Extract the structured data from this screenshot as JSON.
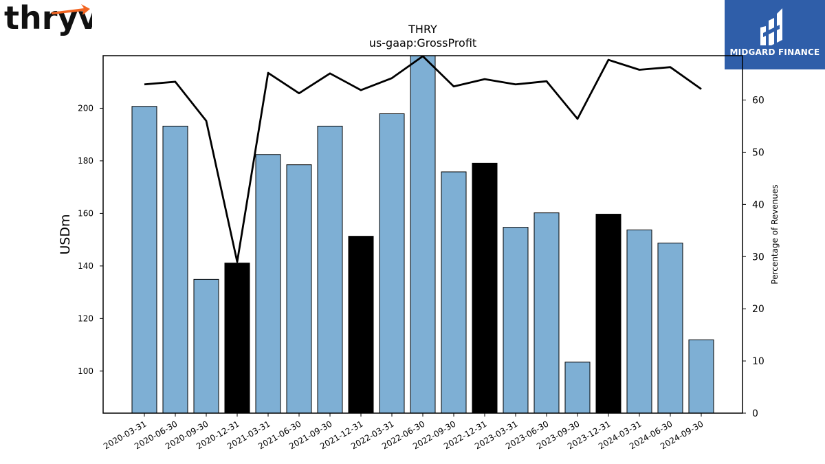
{
  "branding": {
    "left_logo_text": "thryv",
    "right_logo_text": "MIDGARD FINANCE",
    "right_logo_color": "#2f5ea9",
    "left_logo_accent": "#f26522"
  },
  "chart_data": {
    "type": "bar",
    "title": "THRY",
    "subtitle": "us-gaap:GrossProfit",
    "ylabel": "USDm",
    "y2label": "Percentage of Revenues",
    "ylim": [
      84,
      220
    ],
    "y_ticks": [
      100,
      120,
      140,
      160,
      180,
      200
    ],
    "y2lim": [
      0,
      68.5
    ],
    "y2_ticks": [
      0,
      10,
      20,
      30,
      40,
      50,
      60
    ],
    "categories": [
      "2020-03-31",
      "2020-06-30",
      "2020-09-30",
      "2020-12-31",
      "2021-03-31",
      "2021-06-30",
      "2021-09-30",
      "2021-12-31",
      "2022-03-31",
      "2022-06-30",
      "2022-09-30",
      "2022-12-31",
      "2023-03-31",
      "2023-06-30",
      "2023-09-30",
      "2023-12-31",
      "2024-03-31",
      "2024-06-30",
      "2024-09-30"
    ],
    "series": [
      {
        "values": [
          200.7,
          193.2,
          134.9,
          141.1,
          182.4,
          178.5,
          193.2,
          151.3,
          197.9,
          225.0,
          175.8,
          179.1,
          154.7,
          160.2,
          103.4,
          159.7,
          153.7,
          148.7,
          111.9
        ],
        "colors": [
          "#7eafd4",
          "#7eafd4",
          "#7eafd4",
          "#000000",
          "#7eafd4",
          "#7eafd4",
          "#7eafd4",
          "#000000",
          "#7eafd4",
          "#7eafd4",
          "#7eafd4",
          "#000000",
          "#7eafd4",
          "#7eafd4",
          "#7eafd4",
          "#000000",
          "#7eafd4",
          "#7eafd4",
          "#7eafd4"
        ]
      },
      {
        "axis": "right",
        "type": "line",
        "values": [
          63.0,
          63.5,
          56.0,
          29.0,
          65.2,
          61.3,
          65.1,
          61.9,
          64.2,
          68.4,
          62.6,
          64.0,
          63.0,
          63.6,
          56.4,
          67.7,
          65.8,
          66.3,
          62.1
        ]
      }
    ],
    "colors": {
      "bar": "#7eafd4",
      "bar_highlight": "#000000",
      "line": "#000000"
    },
    "grid": false
  }
}
